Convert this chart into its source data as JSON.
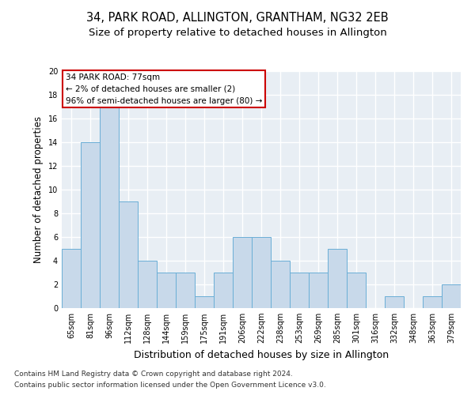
{
  "title1": "34, PARK ROAD, ALLINGTON, GRANTHAM, NG32 2EB",
  "title2": "Size of property relative to detached houses in Allington",
  "xlabel": "Distribution of detached houses by size in Allington",
  "ylabel": "Number of detached properties",
  "categories": [
    "65sqm",
    "81sqm",
    "96sqm",
    "112sqm",
    "128sqm",
    "144sqm",
    "159sqm",
    "175sqm",
    "191sqm",
    "206sqm",
    "222sqm",
    "238sqm",
    "253sqm",
    "269sqm",
    "285sqm",
    "301sqm",
    "316sqm",
    "332sqm",
    "348sqm",
    "363sqm",
    "379sqm"
  ],
  "values": [
    5,
    14,
    17,
    9,
    4,
    3,
    3,
    1,
    3,
    6,
    6,
    4,
    3,
    3,
    5,
    3,
    0,
    1,
    0,
    1,
    2
  ],
  "bar_color": "#c8d9ea",
  "bar_edge_color": "#6aaed6",
  "annotation_text": "34 PARK ROAD: 77sqm\n← 2% of detached houses are smaller (2)\n96% of semi-detached houses are larger (80) →",
  "annotation_box_facecolor": "#ffffff",
  "annotation_box_edgecolor": "#cc0000",
  "ylim": [
    0,
    20
  ],
  "yticks": [
    0,
    2,
    4,
    6,
    8,
    10,
    12,
    14,
    16,
    18,
    20
  ],
  "footer_line1": "Contains HM Land Registry data © Crown copyright and database right 2024.",
  "footer_line2": "Contains public sector information licensed under the Open Government Licence v3.0.",
  "fig_facecolor": "#ffffff",
  "plot_facecolor": "#e8eef4",
  "grid_color": "#ffffff",
  "title1_fontsize": 10.5,
  "title2_fontsize": 9.5,
  "xlabel_fontsize": 9,
  "ylabel_fontsize": 8.5,
  "tick_fontsize": 7,
  "annotation_fontsize": 7.5,
  "footer_fontsize": 6.5
}
